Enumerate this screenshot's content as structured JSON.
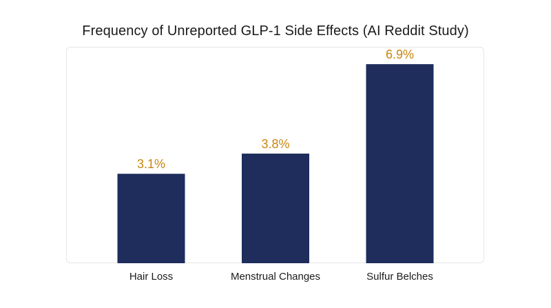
{
  "chart_data": {
    "type": "bar",
    "title": "Frequency of Unreported GLP-1 Side Effects (AI Reddit Study)",
    "categories": [
      "Hair Loss",
      "Menstrual Changes",
      "Sulfur Belches"
    ],
    "values": [
      3.1,
      3.8,
      6.9
    ],
    "value_labels": [
      "3.1%",
      "3.8%",
      "6.9%"
    ],
    "xlabel": "",
    "ylabel": "",
    "ylim": [
      0,
      7.5
    ],
    "grid": false,
    "legend": "none",
    "colors": {
      "bar": "#1e2d5c",
      "value_label": "#c8860d",
      "text": "#1a1a1a",
      "frame": "#e6e6e6"
    }
  }
}
